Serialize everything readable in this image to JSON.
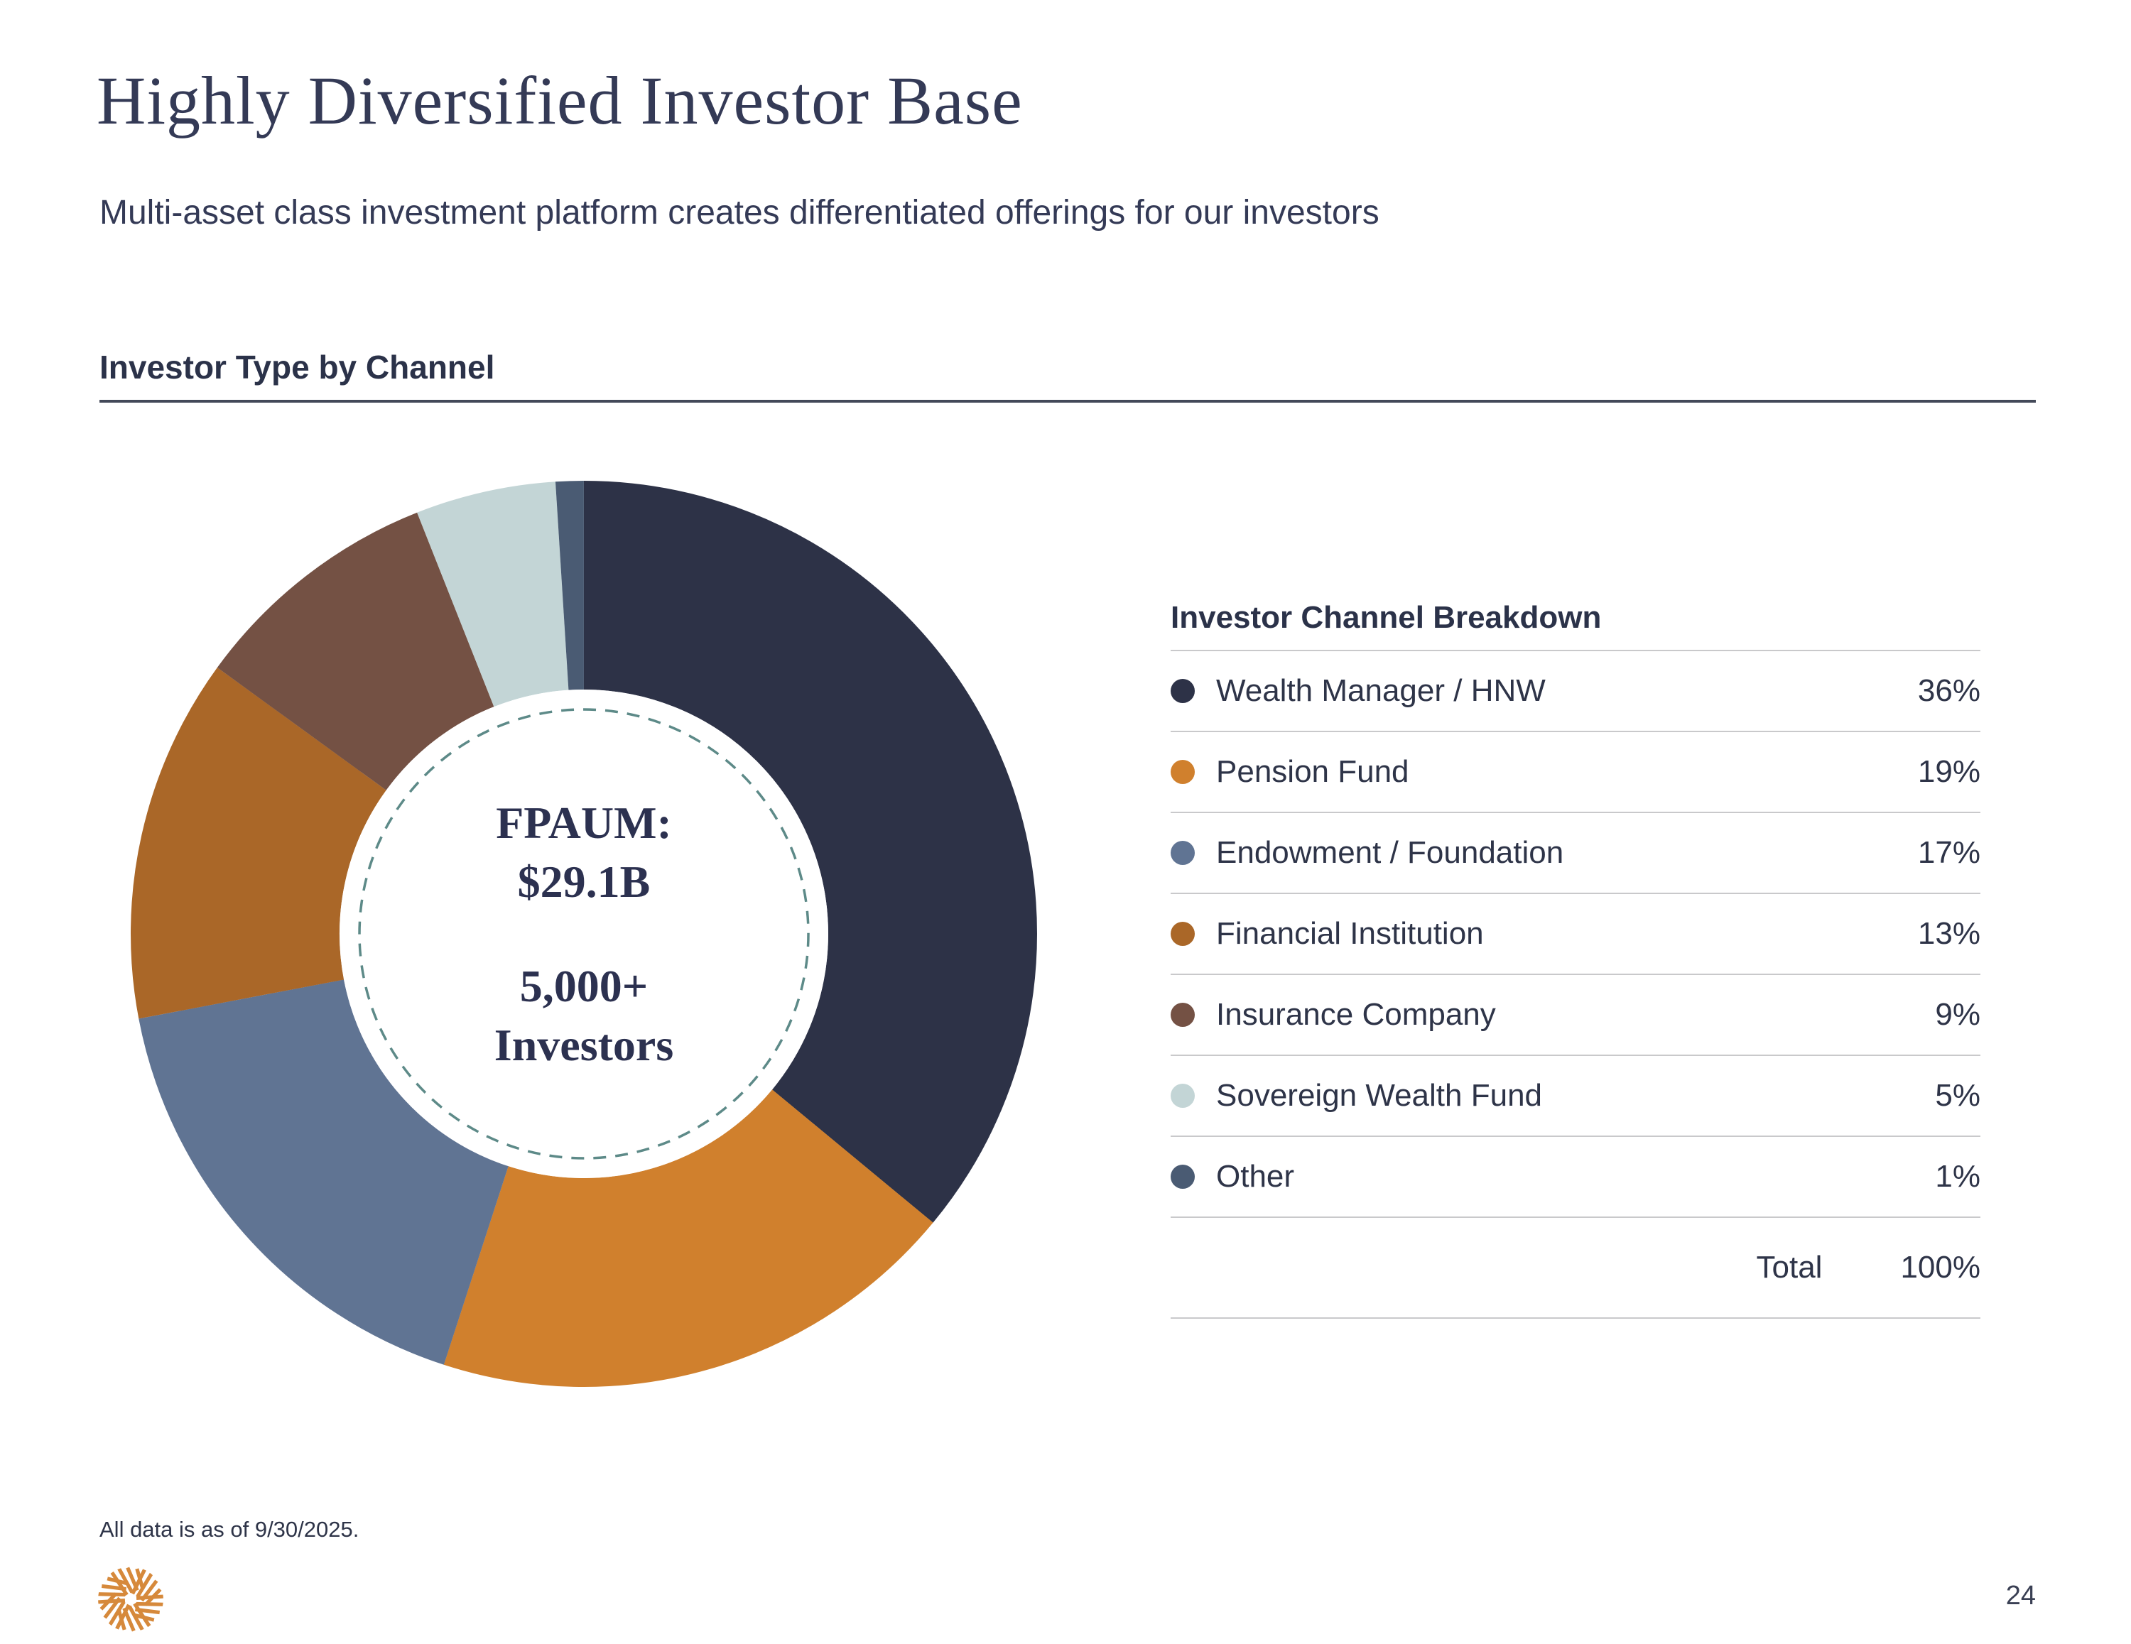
{
  "page": {
    "title": "Highly Diversified Investor Base",
    "subtitle": "Multi-asset class investment platform creates differentiated offerings for our investors",
    "section_heading": "Investor Type by Channel",
    "footnote": "All data is as of 9/30/2025.",
    "page_number": "24"
  },
  "chart_data": {
    "type": "pie",
    "subtype": "donut",
    "title": "Investor Type by Channel",
    "legend_title": "Investor Channel Breakdown",
    "categories": [
      "Wealth Manager / HNW",
      "Pension Fund",
      "Endowment / Foundation",
      "Financial Institution",
      "Insurance Company",
      "Sovereign Wealth Fund",
      "Other"
    ],
    "values": [
      36,
      19,
      17,
      13,
      9,
      5,
      1
    ],
    "display_values": [
      "36%",
      "19%",
      "17%",
      "13%",
      "9%",
      "5%",
      "1%"
    ],
    "unit": "%",
    "colors": [
      "#2d3247",
      "#d0802d",
      "#607493",
      "#aa6728",
      "#745144",
      "#c3d5d6",
      "#4a5b73"
    ],
    "start_angle_deg": -90,
    "direction": "clockwise",
    "center_labels": {
      "line1": "FPAUM:",
      "line2": "$29.1B",
      "line3": "5,000+",
      "line4": "Investors"
    },
    "total_label": "Total",
    "total_value": "100%",
    "layout": {
      "legend_position": "right",
      "inner_dashed_ring": true,
      "dashed_ring_color": "#5d8a88"
    }
  }
}
